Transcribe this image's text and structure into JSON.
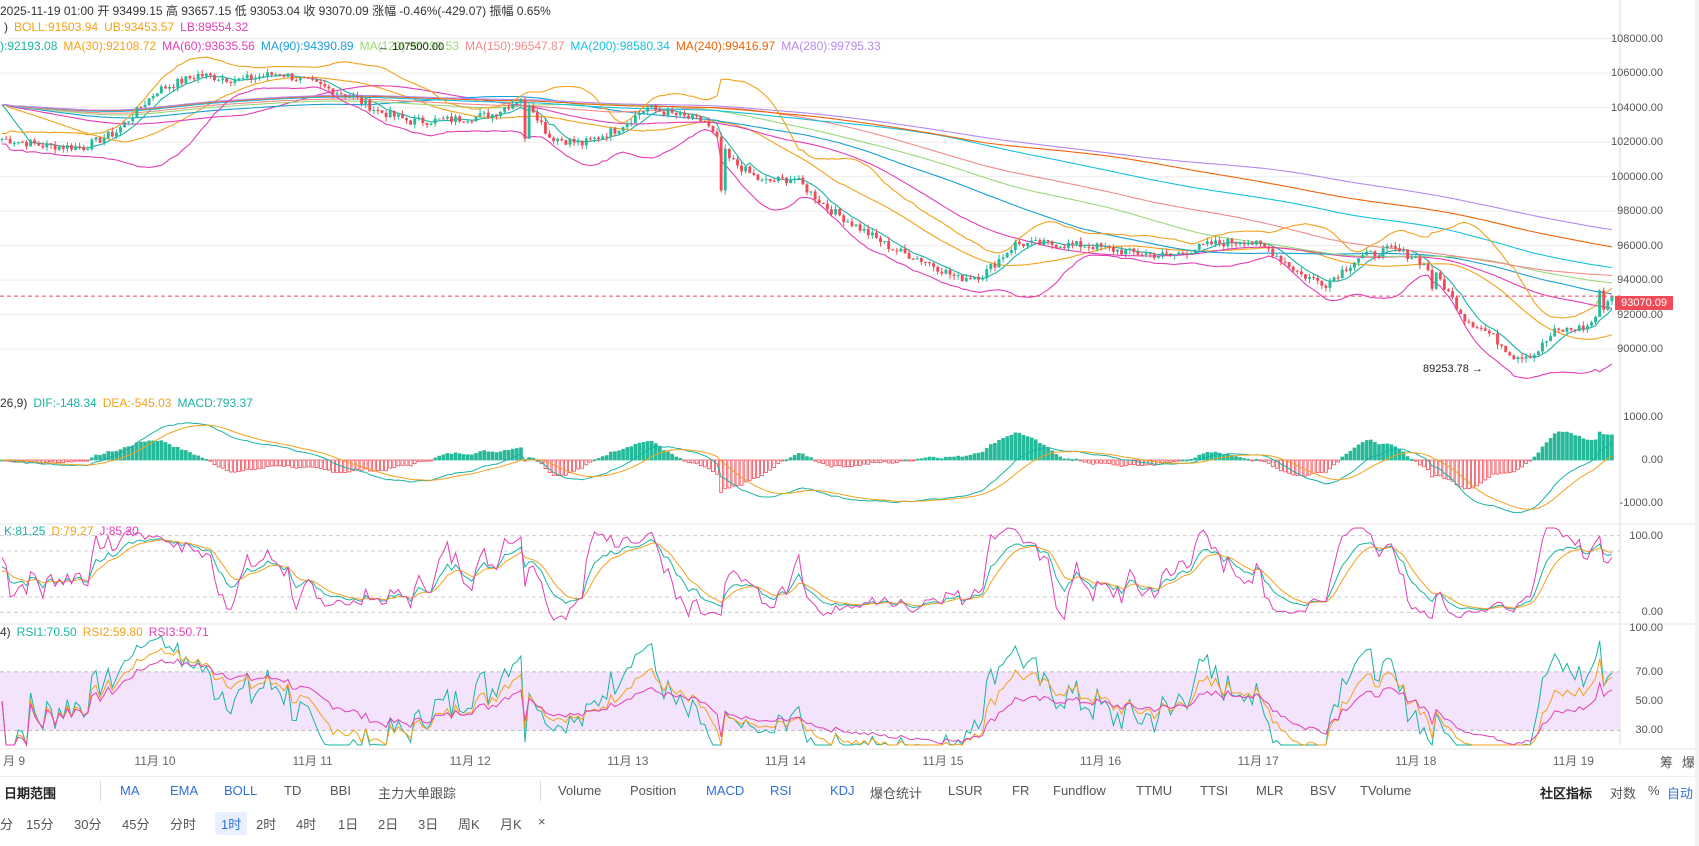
{
  "ohlc_line": "2025-11-19 01:00  开 93499.15  高 93657.15  低 93053.04  收 93070.09  涨幅 -0.46%(-429.07)  振幅 0.65%",
  "boll_line": {
    "items": [
      {
        "text": ")",
        "color": "#333"
      },
      {
        "text": "BOLL:91503.94",
        "color": "#f2a21b"
      },
      {
        "text": "UB:93453.57",
        "color": "#f2a21b"
      },
      {
        "text": "LB:89554.32",
        "color": "#e23fb8"
      }
    ]
  },
  "ma_line": {
    "items": [
      {
        "text": "):92193.08",
        "color": "#1ab3a5"
      },
      {
        "text": "MA(30):92108.72",
        "color": "#f2a21b"
      },
      {
        "text": "MA(60):93635.56",
        "color": "#e23fb8"
      },
      {
        "text": "MA(90):94390.89",
        "color": "#1a9fd8"
      },
      {
        "text": "MA(120):95093.53",
        "color": "#9ad87a"
      },
      {
        "text": "MA(150):96547.87",
        "color": "#f38b8b"
      },
      {
        "text": "MA(200):98580.34",
        "color": "#17c1e0"
      },
      {
        "text": "MA(240):99416.97",
        "color": "#f0640a"
      },
      {
        "text": "MA(280):99795.33",
        "color": "#b58af0"
      }
    ]
  },
  "macd_line": {
    "items": [
      {
        "text": "26,9)",
        "color": "#333"
      },
      {
        "text": "DIF:-148.34",
        "color": "#1ab3a5"
      },
      {
        "text": "DEA:-545.03",
        "color": "#f2a21b"
      },
      {
        "text": "MACD:793.37",
        "color": "#1ab3a5"
      }
    ]
  },
  "kdj_line": {
    "items": [
      {
        "text": "K:81.25",
        "color": "#1ab3a5"
      },
      {
        "text": "D:79.27",
        "color": "#f2a21b"
      },
      {
        "text": "J:85.20",
        "color": "#e23fb8"
      }
    ]
  },
  "rsi_line": {
    "items": [
      {
        "text": "4)",
        "color": "#333"
      },
      {
        "text": "RSI1:70.50",
        "color": "#1ab3a5"
      },
      {
        "text": "RSI2:59.80",
        "color": "#f2a21b"
      },
      {
        "text": "RSI3:50.71",
        "color": "#e23fb8"
      }
    ]
  },
  "price_axis": [
    "108000.00",
    "106000.00",
    "104000.00",
    "102000.00",
    "100000.00",
    "98000.00",
    "96000.00",
    "94000.00",
    "92000.00",
    "90000.00"
  ],
  "current_price": "93070.09",
  "macd_axis": [
    "1000.00",
    "0.00",
    "-1000.00"
  ],
  "kdj_axis": [
    "100.00",
    "0.00"
  ],
  "rsi_axis": [
    "100.00",
    "70.00",
    "50.00",
    "30.00"
  ],
  "x_labels": [
    "月 9",
    "11月 10",
    "11月 11",
    "11月 12",
    "11月 13",
    "11月 14",
    "11月 15",
    "11月 16",
    "11月 17",
    "11月 18",
    "11月 19"
  ],
  "high_mark": "107500.00",
  "low_mark": "89253.78",
  "toolbar1": {
    "left": [
      "日期范围",
      "MA",
      "EMA",
      "BOLL",
      "TD",
      "BBI",
      "主力大单跟踪"
    ],
    "right": [
      "Volume",
      "Position",
      "MACD",
      "RSI",
      "KDJ",
      "爆仓统计",
      "LSUR",
      "FR",
      "Fundflow",
      "TTMU",
      "TTSI",
      "MLR",
      "BSV",
      "TVolume"
    ],
    "tools": [
      "社区指标",
      "对数",
      "%",
      "自动"
    ]
  },
  "toolbar2": [
    "分",
    "15分",
    "30分",
    "45分",
    "分时",
    "1时",
    "2时",
    "4时",
    "1日",
    "2日",
    "3日",
    "周K",
    "月K",
    "×"
  ],
  "right_labels": [
    "筹",
    "爆"
  ],
  "colors": {
    "up": "#26b99a",
    "down": "#ef4b58",
    "grid": "#eeeeee"
  },
  "chart_data": {
    "type": "candlestick",
    "price_range": [
      88500,
      108500
    ],
    "macd_range": [
      -1400,
      1400
    ],
    "kdj_range": [
      -10,
      110
    ],
    "rsi_range": [
      20,
      100
    ],
    "close_anchors": [
      [
        0,
        102200
      ],
      [
        10,
        101800
      ],
      [
        20,
        101700
      ],
      [
        28,
        102600
      ],
      [
        38,
        105000
      ],
      [
        48,
        105900
      ],
      [
        58,
        105600
      ],
      [
        68,
        106000
      ],
      [
        76,
        105400
      ],
      [
        86,
        104600
      ],
      [
        92,
        103800
      ],
      [
        100,
        103200
      ],
      [
        110,
        103300
      ],
      [
        120,
        103600
      ],
      [
        128,
        104700
      ],
      [
        134,
        102300
      ],
      [
        142,
        101900
      ],
      [
        150,
        102700
      ],
      [
        158,
        104000
      ],
      [
        166,
        103500
      ],
      [
        172,
        103200
      ],
      [
        178,
        101000
      ],
      [
        186,
        99700
      ],
      [
        194,
        99900
      ],
      [
        202,
        98200
      ],
      [
        210,
        97000
      ],
      [
        218,
        95800
      ],
      [
        226,
        95100
      ],
      [
        234,
        94100
      ],
      [
        240,
        94300
      ],
      [
        248,
        96100
      ],
      [
        256,
        96100
      ],
      [
        266,
        96000
      ],
      [
        276,
        95600
      ],
      [
        286,
        95400
      ],
      [
        296,
        96100
      ],
      [
        304,
        96300
      ],
      [
        310,
        95800
      ],
      [
        318,
        94300
      ],
      [
        324,
        93800
      ],
      [
        332,
        95300
      ],
      [
        340,
        95800
      ],
      [
        346,
        95300
      ],
      [
        352,
        94000
      ],
      [
        358,
        91800
      ],
      [
        364,
        90900
      ],
      [
        370,
        89600
      ],
      [
        375,
        89700
      ],
      [
        380,
        91000
      ],
      [
        388,
        91300
      ],
      [
        394,
        93070
      ]
    ],
    "n_candles": 395,
    "events": [
      [
        128,
        105000,
        102200
      ],
      [
        176,
        101900,
        99200
      ],
      [
        350,
        95600,
        93500
      ],
      [
        391,
        91600,
        93400
      ]
    ]
  }
}
